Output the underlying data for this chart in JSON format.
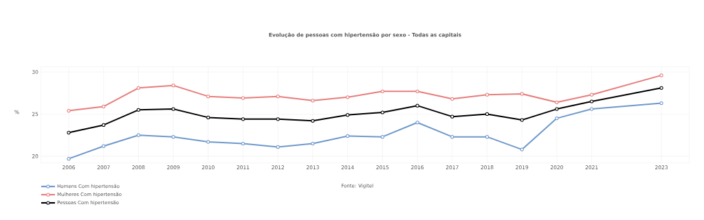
{
  "chart_data": {
    "type": "line",
    "title": "Evolução de pessoas com hipertensão por sexo - Todas as capitais",
    "ylabel": "%",
    "annotations": [
      "Fonte: Vigitel"
    ],
    "x": [
      2006,
      2007,
      2008,
      2009,
      2010,
      2011,
      2012,
      2013,
      2014,
      2015,
      2016,
      2017,
      2018,
      2019,
      2020,
      2021,
      2023
    ],
    "series": [
      {
        "name": "Homens Com hipertensão",
        "color": "#6f98cb",
        "values": [
          19.7,
          21.2,
          22.5,
          22.3,
          21.7,
          21.5,
          21.1,
          21.5,
          22.4,
          22.3,
          24.0,
          22.3,
          22.3,
          20.8,
          24.5,
          25.6,
          26.3
        ]
      },
      {
        "name": "Mulheres Com hipertensão",
        "color": "#e87c7c",
        "values": [
          25.4,
          25.9,
          28.1,
          28.4,
          27.1,
          26.9,
          27.1,
          26.6,
          27.0,
          27.7,
          27.7,
          26.8,
          27.3,
          27.4,
          26.4,
          27.3,
          29.6
        ]
      },
      {
        "name": "Pessoas Com hipertensão",
        "color": "#000000",
        "values": [
          22.8,
          23.7,
          25.5,
          25.6,
          24.6,
          24.4,
          24.4,
          24.2,
          24.9,
          25.2,
          26.0,
          24.7,
          25.0,
          24.3,
          25.6,
          26.5,
          28.1
        ]
      }
    ],
    "xlim": [
      2005.2,
      2023.8
    ],
    "ylim": [
      19.2,
      30.6
    ],
    "xticks": [
      2006,
      2007,
      2008,
      2009,
      2010,
      2011,
      2012,
      2013,
      2014,
      2015,
      2016,
      2017,
      2018,
      2019,
      2020,
      2021,
      2023
    ],
    "yticks": [
      20,
      25,
      30
    ],
    "grid": true,
    "legend": "bottom left",
    "marker": "circle",
    "line_style": "solid"
  }
}
